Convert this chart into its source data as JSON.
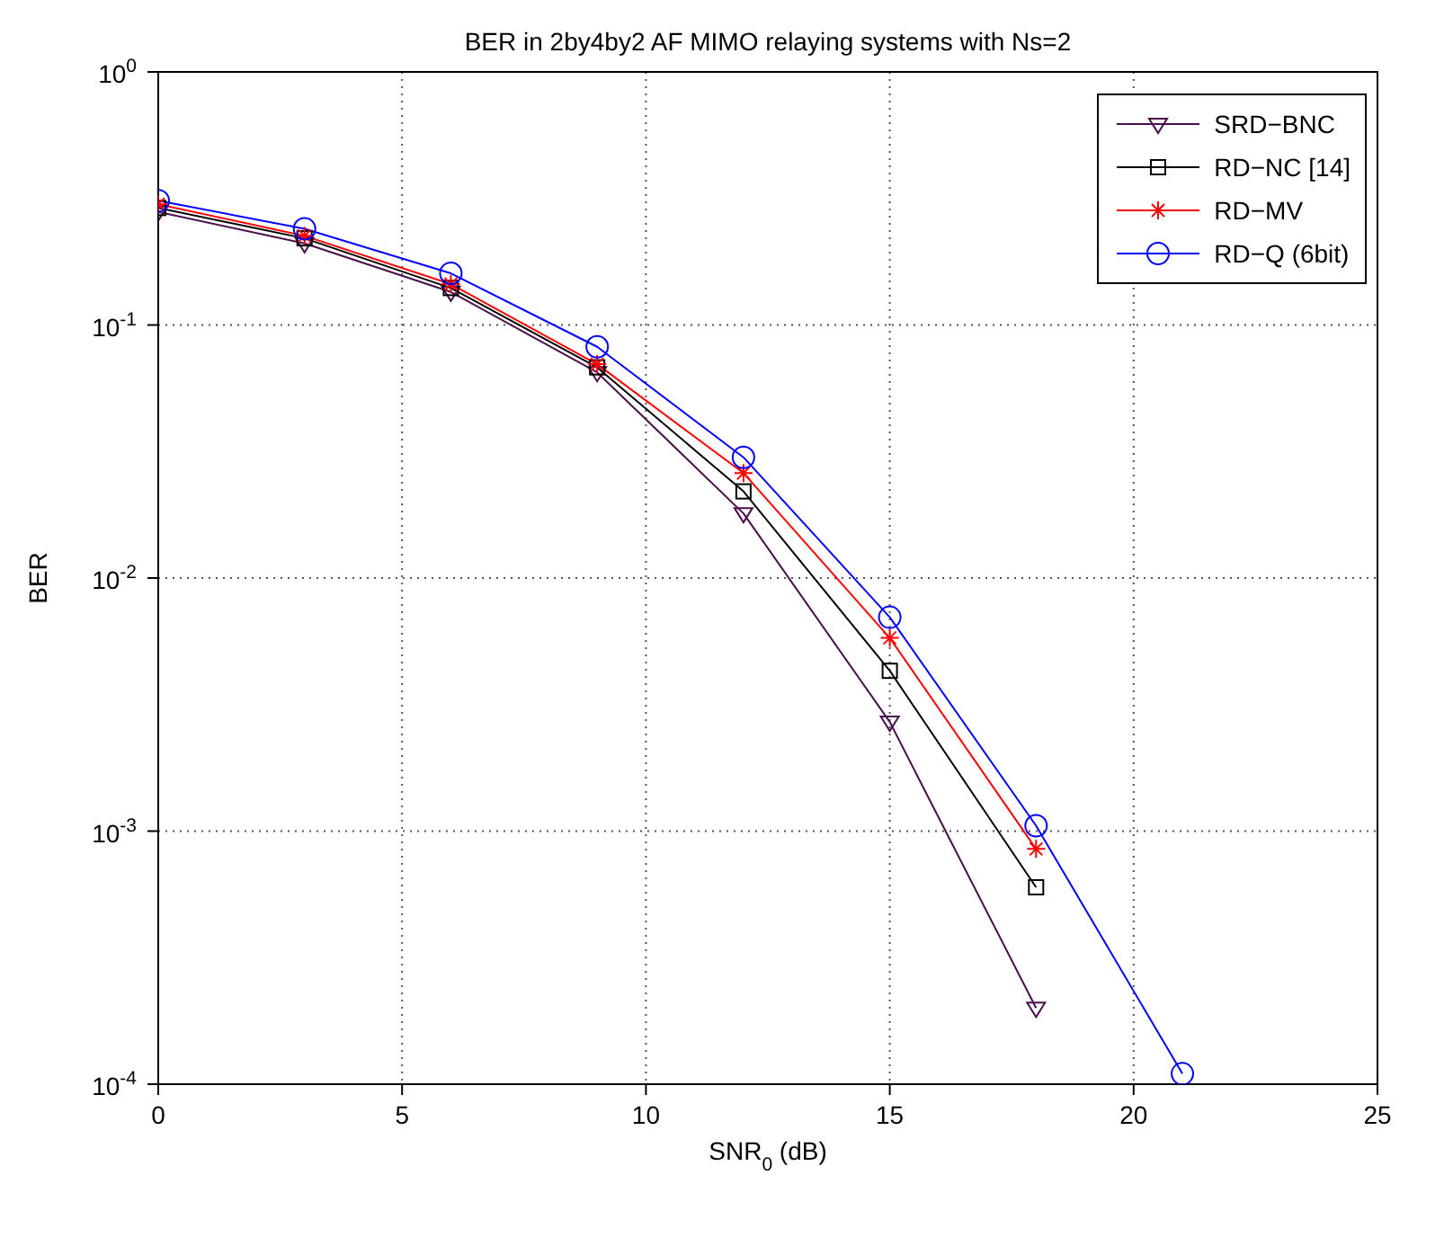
{
  "chart_data": {
    "type": "line",
    "title": "BER in 2by4by2 AF MIMO relaying systems with Ns=2",
    "xlabel": "SNR$_{0}$ (dB)",
    "ylabel": "BER",
    "x": [
      0,
      3,
      6,
      9,
      12,
      15,
      18,
      21
    ],
    "series": [
      {
        "name": "SRD−BNC",
        "color": "#4b0f4b",
        "marker": "triangle",
        "values": [
          0.28,
          0.21,
          0.135,
          0.065,
          0.018,
          0.0027,
          0.0002,
          null
        ]
      },
      {
        "name": "RD−NC [14]",
        "color": "#000000",
        "marker": "square",
        "values": [
          0.29,
          0.22,
          0.14,
          0.068,
          0.022,
          0.0043,
          0.0006,
          null
        ]
      },
      {
        "name": "RD−MV",
        "color": "#ff0000",
        "marker": "cross",
        "values": [
          0.3,
          0.225,
          0.145,
          0.07,
          0.026,
          0.0058,
          0.00085,
          null
        ]
      },
      {
        "name": "RD−Q (6bit)",
        "color": "#0000ff",
        "marker": "circle",
        "values": [
          0.31,
          0.24,
          0.16,
          0.082,
          0.03,
          0.007,
          0.00105,
          0.00011
        ]
      }
    ],
    "xlim": [
      0,
      25
    ],
    "xticks": [
      0,
      5,
      10,
      15,
      20,
      25
    ],
    "ylim": [
      0.0001,
      1
    ],
    "yticks": [
      {
        "value": 0.0001,
        "label": "10$^{-4}$"
      },
      {
        "value": 0.001,
        "label": "10$^{-3}$"
      },
      {
        "value": 0.01,
        "label": "10$^{-2}$"
      },
      {
        "value": 0.1,
        "label": "10$^{-1}$"
      },
      {
        "value": 1,
        "label": "10$^{0}$"
      }
    ],
    "log": true,
    "grid": true,
    "legend": "top right",
    "line_style": "solid"
  }
}
